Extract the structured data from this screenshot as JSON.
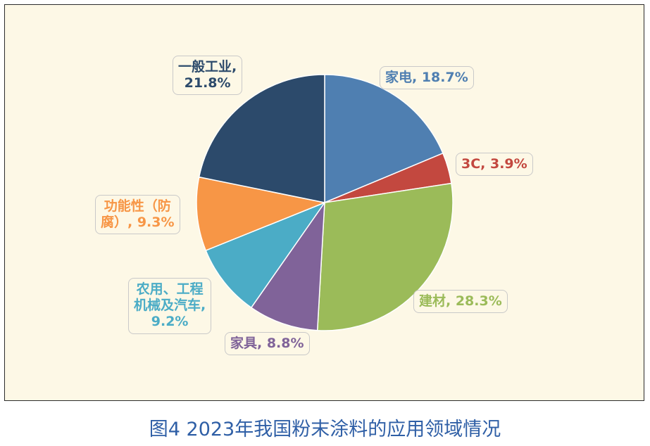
{
  "chart_data": {
    "type": "pie",
    "slices": [
      {
        "label": "家电, 18.7%",
        "value": 18.7,
        "color": "#4f7fb1"
      },
      {
        "label": "3C, 3.9%",
        "value": 3.9,
        "color": "#c3483f"
      },
      {
        "label": "建材, 28.3%",
        "value": 28.3,
        "color": "#9bbb59"
      },
      {
        "label": "家具, 8.8%",
        "value": 8.8,
        "color": "#806399"
      },
      {
        "label": "农用、工程\n机械及汽车,\n9.2%",
        "value": 9.2,
        "color": "#4bacc6"
      },
      {
        "label": "功能性（防\n腐）, 9.3%",
        "value": 9.3,
        "color": "#f79646"
      },
      {
        "label": "一般工业,\n21.8%",
        "value": 21.8,
        "color": "#2c4a6b"
      }
    ],
    "start_angle_deg": 0,
    "direction": "clockwise"
  },
  "caption": "图4 2023年我国粉末涂料的应用领域情况"
}
